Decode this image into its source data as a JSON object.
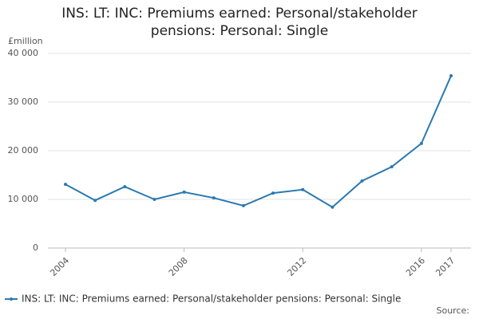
{
  "chart_data": {
    "type": "line",
    "title": "INS: LT: INC: Premiums earned: Personal/stakeholder pensions: Personal: Single",
    "y_label": "£million",
    "source": "Source:",
    "x": [
      2004,
      2005,
      2006,
      2007,
      2008,
      2009,
      2010,
      2011,
      2012,
      2013,
      2014,
      2015,
      2016,
      2017
    ],
    "series": [
      {
        "name": "INS: LT: INC: Premiums earned: Personal/stakeholder pensions: Personal: Single",
        "color": "#2a7ab0",
        "values": [
          13100,
          9800,
          12600,
          10000,
          11500,
          10300,
          8700,
          11300,
          12000,
          8400,
          13800,
          16700,
          21500,
          35400
        ]
      }
    ],
    "xlim": [
      2004,
      2017
    ],
    "xticks": [
      2004,
      2008,
      2012,
      2016,
      2017
    ],
    "ylim": [
      0,
      40000
    ],
    "yticks": [
      0,
      {
        "value": 10000,
        "label": "10 000"
      },
      {
        "value": 20000,
        "label": "20 000"
      },
      {
        "value": 30000,
        "label": "30 000"
      },
      {
        "value": 40000,
        "label": "40 000"
      }
    ],
    "grid": true
  }
}
